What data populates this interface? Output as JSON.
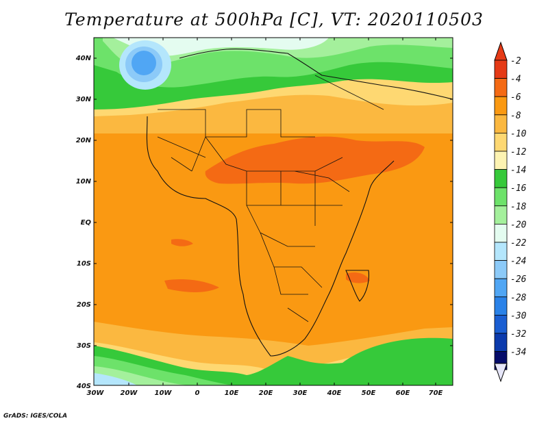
{
  "title": "Temperature at 500hPa [C], VT: 2020110503",
  "credit": "GrADS: IGES/COLA",
  "map": {
    "lat_labels": [
      "40N",
      "30N",
      "20N",
      "10N",
      "EQ",
      "10S",
      "20S",
      "30S",
      "40S"
    ],
    "lon_labels": [
      "30W",
      "20W",
      "10W",
      "0",
      "10E",
      "20E",
      "30E",
      "40E",
      "50E",
      "60E",
      "70E"
    ]
  },
  "colorbar": {
    "labels": [
      "-2",
      "-4",
      "-6",
      "-8",
      "-10",
      "-12",
      "-14",
      "-16",
      "-18",
      "-20",
      "-22",
      "-24",
      "-26",
      "-28",
      "-30",
      "-32",
      "-34"
    ],
    "colors": [
      "#e53a16",
      "#f46a14",
      "#fa9912",
      "#fbb840",
      "#fed872",
      "#fdf3b2",
      "#36c93a",
      "#6de26a",
      "#a4f09c",
      "#e4fcf0",
      "#b4e6fc",
      "#8ccaf8",
      "#50a6f4",
      "#2a82e8",
      "#1a5ed2",
      "#0b3aac",
      "#050c6a"
    ],
    "top_arrow_color": "#e53a16",
    "bottom_arrow_color": "#e6e6f8"
  }
}
